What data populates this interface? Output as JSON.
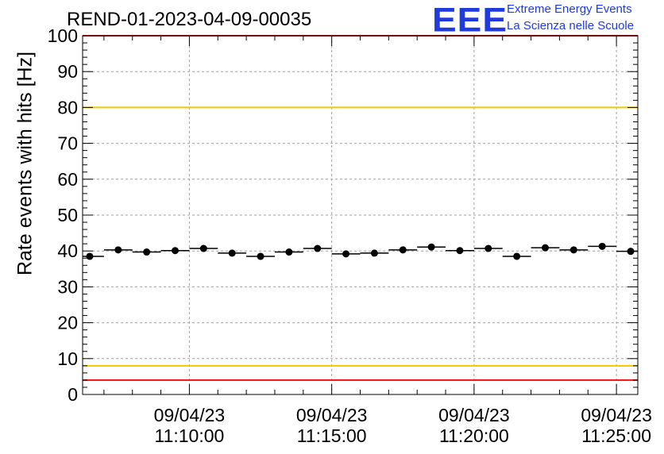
{
  "header": {
    "run_title": "REND-01-2023-04-09-00035",
    "logo_text": "EEE",
    "logo_line1": "Extreme Energy Events",
    "logo_line2": "La Scienza nelle Scuole"
  },
  "colors": {
    "logo": "#1f3bdc",
    "red_limit": "#ee1111",
    "yellow_limit": "#f0c800",
    "grid": "#a0a0a0",
    "markers": "#000000"
  },
  "chart_data": {
    "type": "scatter",
    "title": "REND-01-2023-04-09-00035",
    "xlabel": "",
    "ylabel": "Rate events with hits [Hz]",
    "ylim": [
      0,
      100
    ],
    "y_ticks": [
      "0",
      "10",
      "20",
      "30",
      "40",
      "50",
      "60",
      "70",
      "80",
      "90",
      "100"
    ],
    "xlim": [
      "09/04/23 11:06:15",
      "09/04/23 11:25:45"
    ],
    "x_ticks": [
      {
        "date": "09/04/23",
        "time": "11:10:00"
      },
      {
        "date": "09/04/23",
        "time": "11:15:00"
      },
      {
        "date": "09/04/23",
        "time": "11:20:00"
      },
      {
        "date": "09/04/23",
        "time": "11:25:00"
      }
    ],
    "grid": true,
    "bin_width_s": 60,
    "series": [
      {
        "x": [
          "11:06:30",
          "11:07:30",
          "11:08:30",
          "11:09:30",
          "11:10:30",
          "11:11:30",
          "11:12:30",
          "11:13:30",
          "11:14:30",
          "11:15:30",
          "11:16:30",
          "11:17:30",
          "11:18:30",
          "11:19:30",
          "11:20:30",
          "11:21:30",
          "11:22:30",
          "11:23:30",
          "11:24:30",
          "11:25:30"
        ],
        "y": [
          38.5,
          40.3,
          39.7,
          40.1,
          40.7,
          39.4,
          38.5,
          39.7,
          40.7,
          39.2,
          39.4,
          40.3,
          41.1,
          40.1,
          40.7,
          38.5,
          40.9,
          40.3,
          41.3,
          39.9
        ]
      }
    ],
    "reference_lines": [
      {
        "y": 4,
        "color": "red"
      },
      {
        "y": 8,
        "color": "yellow"
      },
      {
        "y": 80,
        "color": "yellow"
      },
      {
        "y": 100,
        "color": "red"
      }
    ]
  }
}
